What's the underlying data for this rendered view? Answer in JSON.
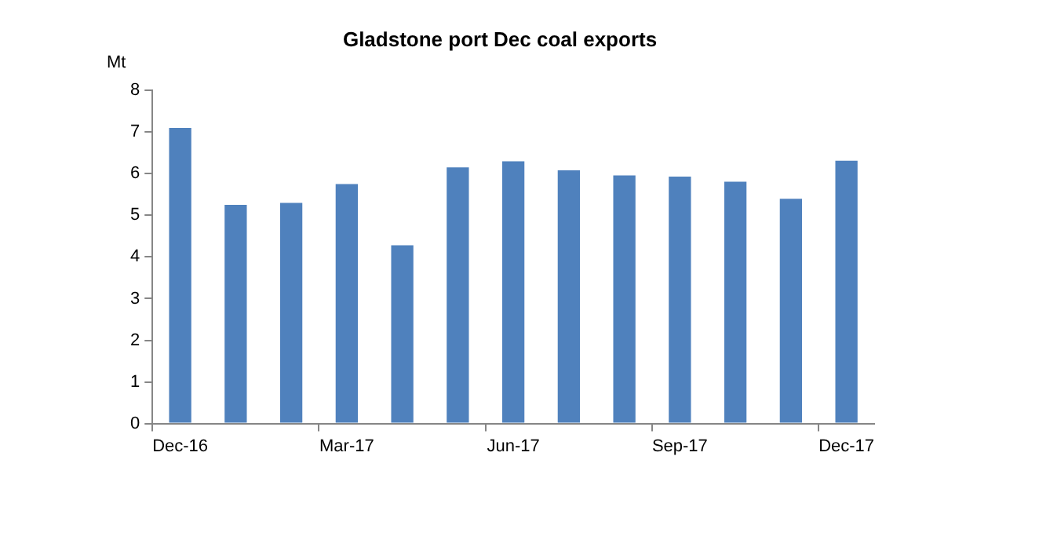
{
  "chart_data": {
    "type": "bar",
    "title": "Gladstone port Dec coal exports",
    "ylabel": "Mt",
    "categories": [
      "Dec-16",
      null,
      null,
      "Mar-17",
      null,
      null,
      "Jun-17",
      null,
      null,
      "Sep-17",
      null,
      null,
      "Dec-17"
    ],
    "values": [
      7.1,
      5.25,
      5.3,
      5.75,
      4.28,
      6.15,
      6.3,
      6.08,
      5.96,
      5.93,
      5.81,
      5.4,
      6.31
    ],
    "color": "#4f81bd",
    "ylim": [
      0,
      8
    ],
    "yticks": [
      0,
      1,
      2,
      3,
      4,
      5,
      6,
      7,
      8
    ],
    "grid": false,
    "legend": false
  }
}
